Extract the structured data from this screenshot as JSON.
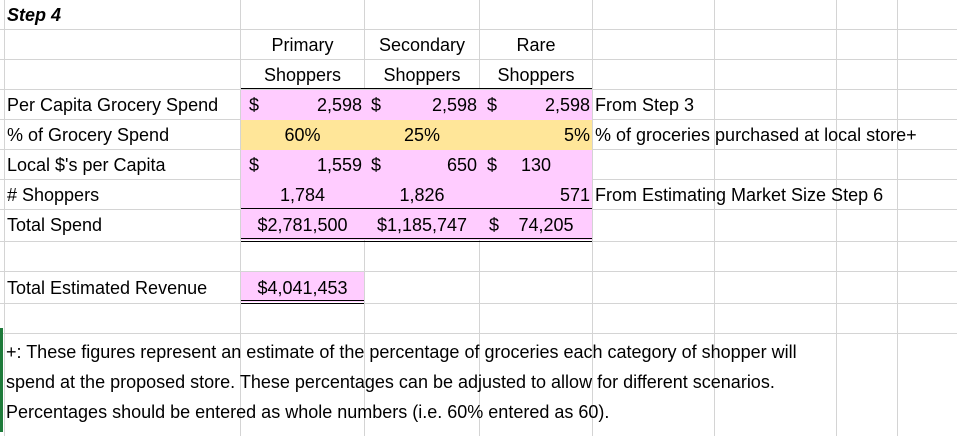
{
  "title": "Step 4",
  "columns": [
    {
      "line1": "Primary",
      "line2": "Shoppers"
    },
    {
      "line1": "Secondary",
      "line2": "Shoppers"
    },
    {
      "line1": "Rare",
      "line2": "Shoppers"
    }
  ],
  "rows": [
    {
      "label": "Per Capita Grocery Spend",
      "cur1": "$",
      "v1": "2,598",
      "cur2": "$",
      "v2": "2,598",
      "cur3": "$",
      "v3": "2,598",
      "note": "From Step 3"
    },
    {
      "label": "% of Grocery Spend",
      "cur1": "",
      "v1": "60%",
      "cur2": "",
      "v2": "25%",
      "cur3": "",
      "v3": "5%",
      "note": "% of groceries purchased at local store+"
    },
    {
      "label": "Local $'s per Capita",
      "cur1": "$",
      "v1": "1,559",
      "cur2": "$",
      "v2": "650",
      "cur3": "$",
      "v3": "130",
      "note": ""
    },
    {
      "label": "# Shoppers",
      "cur1": "",
      "v1": "1,784",
      "cur2": "",
      "v2": "1,826",
      "cur3": "",
      "v3": "571",
      "note": "From Estimating Market Size Step 6"
    },
    {
      "label": "Total Spend",
      "cur1": "",
      "v1": "$2,781,500",
      "cur2": "",
      "v2": "$1,185,747",
      "cur3": "$",
      "v3": "74,205",
      "note": ""
    }
  ],
  "total_revenue": {
    "label": "Total Estimated Revenue",
    "value": "$4,041,453"
  },
  "footnote": [
    "+: These figures represent an estimate of the percentage of groceries each category of shopper will",
    "spend at the proposed store. These percentages can be adjusted to allow for different scenarios.",
    "Percentages should be entered as whole numbers (i.e. 60% entered as 60)."
  ],
  "colors": {
    "pink": "#ffccff",
    "yellow": "#ffe699",
    "grid": "#d4d4d4"
  }
}
